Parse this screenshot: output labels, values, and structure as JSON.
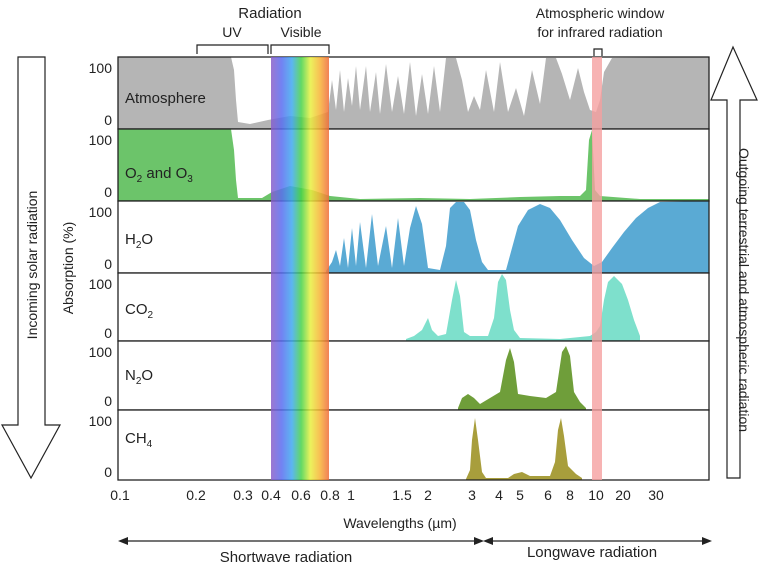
{
  "header": {
    "radiation": "Radiation",
    "uv": "UV",
    "visible": "Visible",
    "window_line1": "Atmospheric window",
    "window_line2": "for infrared radiation"
  },
  "side": {
    "incoming": "Incoming solar radiation",
    "outgoing": "Outgoing terrestrial and atmospheric radiation"
  },
  "axes": {
    "ylabel": "Absorption (%)",
    "xlabel": "Wavelengths (µm)",
    "xticks": [
      "0.1",
      "0.2",
      "0.3",
      "0.4",
      "0.6",
      "0.8",
      "1",
      "1.5",
      "2",
      "3",
      "4",
      "5",
      "6",
      "8",
      "10",
      "20",
      "30"
    ],
    "ymax_label": "100",
    "ymin_label": "0"
  },
  "bottom": {
    "shortwave": "Shortwave radiation",
    "longwave": "Longwave radiation"
  },
  "panels": [
    {
      "label_main": "Atmosphere",
      "label_sub": "",
      "label_tail": "",
      "color": "#b8b8b8"
    },
    {
      "label_main": "O",
      "label_sub": "2",
      "label_tail": " and O",
      "label_sub2": "3",
      "color": "#6cc46a"
    },
    {
      "label_main": "H",
      "label_sub": "2",
      "label_tail": "O",
      "color": "#5aaad4"
    },
    {
      "label_main": "CO",
      "label_sub": "2",
      "label_tail": "",
      "color": "#7ee0cc"
    },
    {
      "label_main": "N",
      "label_sub": "2",
      "label_tail": "O",
      "color": "#6f9e3a"
    },
    {
      "label_main": "CH",
      "label_sub": "4",
      "label_tail": "",
      "color": "#a89e3c"
    }
  ],
  "colors": {
    "window_band": "#f5a0a0",
    "visible_spectrum": [
      "#8a5fc8",
      "#5a6cf0",
      "#3fa8f0",
      "#46d24a",
      "#e8f040",
      "#f7b536",
      "#ef6a3a"
    ]
  }
}
